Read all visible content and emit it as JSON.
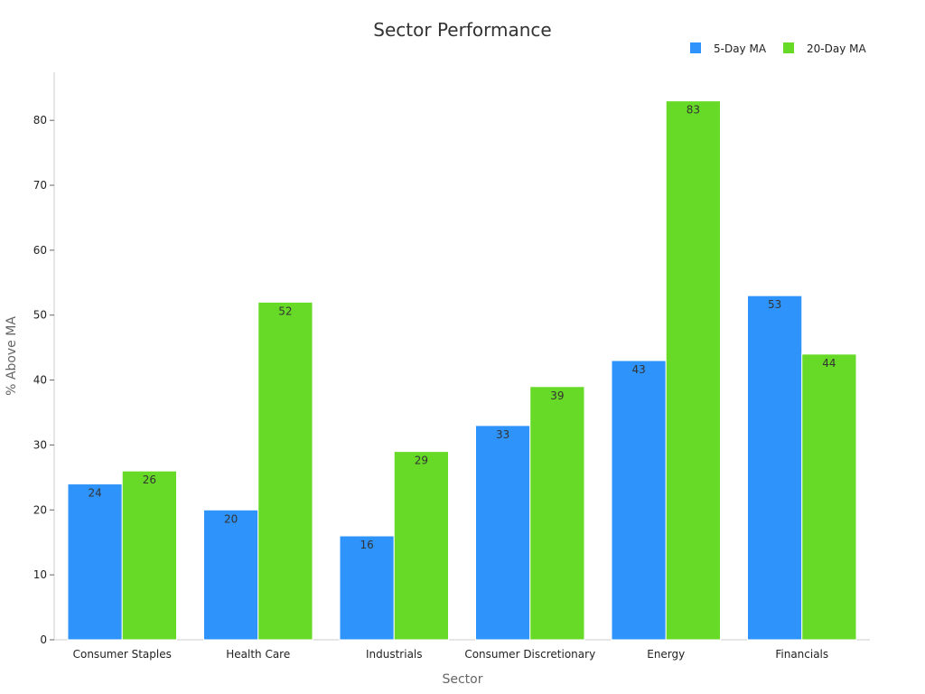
{
  "chart_data": {
    "type": "bar",
    "title": "Sector Performance",
    "xlabel": "Sector",
    "ylabel": "% Above MA",
    "categories": [
      "Consumer Staples",
      "Health Care",
      "Industrials",
      "Consumer Discretionary",
      "Energy",
      "Financials"
    ],
    "series": [
      {
        "name": "5-Day MA",
        "color": "#2E93FA",
        "values": [
          24,
          20,
          16,
          33,
          43,
          53
        ]
      },
      {
        "name": "20-Day MA",
        "color": "#66DA26",
        "values": [
          26,
          52,
          29,
          39,
          83,
          44
        ]
      }
    ],
    "ylim": [
      0,
      87.4
    ],
    "yticks": [
      0,
      10,
      20,
      30,
      40,
      50,
      60,
      70,
      80
    ],
    "grid": false,
    "legend": "top-right"
  }
}
